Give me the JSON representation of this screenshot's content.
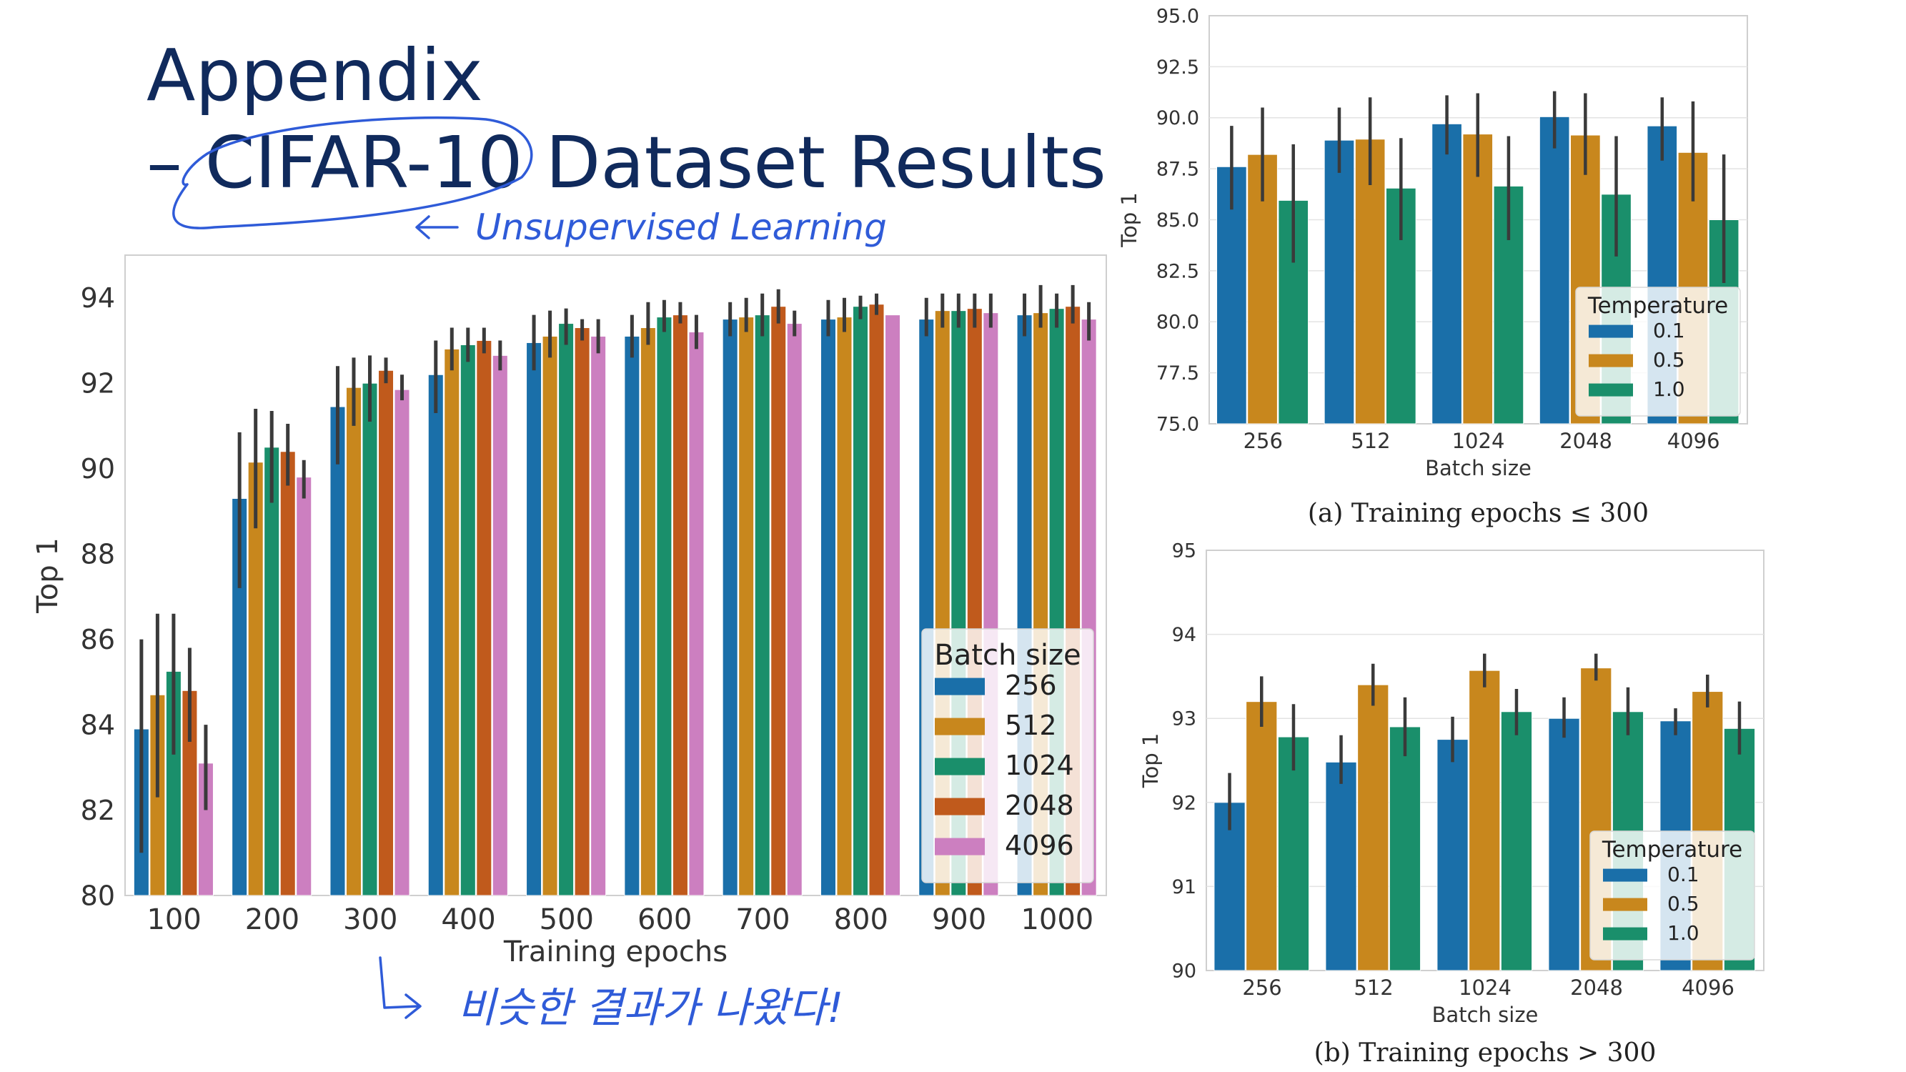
{
  "slide": {
    "title_line1": "Appendix",
    "title_line2": "– CIFAR-10 Dataset Results",
    "annotation_top": "Unsupervised Learning",
    "annotation_bottom": "비슷한 결과가 나왔다!"
  },
  "colors": {
    "256": "#1a6fa9",
    "512": "#c8871d",
    "1024": "#1a8f6b",
    "2048": "#c05a1c",
    "4096": "#cc7fc0",
    "0.1": "#1a6fa9",
    "0.5": "#c8871d",
    "1.0": "#1a8f6b"
  },
  "chart_data": [
    {
      "id": "main",
      "type": "bar",
      "xlabel": "Training epochs",
      "ylabel": "Top 1",
      "ylim": [
        80,
        95
      ],
      "yticks": [
        80,
        82,
        84,
        86,
        88,
        90,
        92,
        94
      ],
      "categories": [
        "100",
        "200",
        "300",
        "400",
        "500",
        "600",
        "700",
        "800",
        "900",
        "1000"
      ],
      "legend": {
        "title": "Batch size",
        "position": "lower-right"
      },
      "series": [
        {
          "name": "256",
          "values": [
            83.9,
            89.3,
            91.45,
            92.2,
            92.95,
            93.1,
            93.5,
            93.5,
            93.5,
            93.6
          ],
          "err": [
            [
              81.0,
              86.0
            ],
            [
              87.2,
              90.85
            ],
            [
              90.1,
              92.4
            ],
            [
              91.3,
              93.0
            ],
            [
              92.3,
              93.6
            ],
            [
              92.6,
              93.6
            ],
            [
              93.1,
              93.9
            ],
            [
              93.1,
              93.95
            ],
            [
              93.1,
              94.0
            ],
            [
              93.1,
              94.1
            ]
          ]
        },
        {
          "name": "512",
          "values": [
            84.7,
            90.15,
            91.9,
            92.8,
            93.1,
            93.3,
            93.55,
            93.55,
            93.7,
            93.65
          ],
          "err": [
            [
              82.3,
              86.6
            ],
            [
              88.6,
              91.4
            ],
            [
              91.0,
              92.6
            ],
            [
              92.3,
              93.3
            ],
            [
              92.6,
              93.7
            ],
            [
              92.9,
              93.9
            ],
            [
              93.2,
              94.0
            ],
            [
              93.2,
              94.0
            ],
            [
              93.3,
              94.1
            ],
            [
              93.3,
              94.3
            ]
          ]
        },
        {
          "name": "1024",
          "values": [
            85.25,
            90.5,
            92.0,
            92.9,
            93.4,
            93.55,
            93.6,
            93.8,
            93.7,
            93.75
          ],
          "err": [
            [
              83.3,
              86.6
            ],
            [
              89.2,
              91.35
            ],
            [
              91.1,
              92.65
            ],
            [
              92.5,
              93.3
            ],
            [
              92.9,
              93.75
            ],
            [
              93.2,
              93.95
            ],
            [
              93.1,
              94.1
            ],
            [
              93.5,
              94.05
            ],
            [
              93.3,
              94.1
            ],
            [
              93.3,
              94.1
            ]
          ]
        },
        {
          "name": "2048",
          "values": [
            84.8,
            90.4,
            92.3,
            93.0,
            93.3,
            93.6,
            93.8,
            93.85,
            93.75,
            93.8
          ],
          "err": [
            [
              83.6,
              85.8
            ],
            [
              89.6,
              91.05
            ],
            [
              92.0,
              92.6
            ],
            [
              92.7,
              93.3
            ],
            [
              93.0,
              93.5
            ],
            [
              93.4,
              93.9
            ],
            [
              93.4,
              94.2
            ],
            [
              93.6,
              94.1
            ],
            [
              93.3,
              94.1
            ],
            [
              93.4,
              94.3
            ]
          ]
        },
        {
          "name": "4096",
          "values": [
            83.1,
            89.8,
            91.85,
            92.65,
            93.1,
            93.2,
            93.4,
            93.6,
            93.65,
            93.5
          ],
          "err": [
            [
              82.0,
              84.0
            ],
            [
              89.3,
              90.2
            ],
            [
              91.6,
              92.2
            ],
            [
              92.3,
              93.0
            ],
            [
              92.7,
              93.5
            ],
            [
              92.8,
              93.6
            ],
            [
              93.1,
              93.7
            ],
            [
              93.6,
              93.6
            ],
            [
              93.3,
              94.1
            ],
            [
              93.0,
              93.9
            ]
          ]
        }
      ]
    },
    {
      "id": "a",
      "type": "bar",
      "caption": "(a) Training epochs ≤ 300",
      "xlabel": "Batch size",
      "ylabel": "Top 1",
      "ylim": [
        75,
        95
      ],
      "yticks": [
        75.0,
        77.5,
        80.0,
        82.5,
        85.0,
        87.5,
        90.0,
        92.5,
        95.0
      ],
      "categories": [
        "256",
        "512",
        "1024",
        "2048",
        "4096"
      ],
      "legend": {
        "title": "Temperature",
        "position": "lower-right"
      },
      "series": [
        {
          "name": "0.1",
          "values": [
            87.6,
            88.9,
            89.7,
            90.05,
            89.6
          ],
          "err": [
            [
              85.5,
              89.6
            ],
            [
              87.3,
              90.5
            ],
            [
              88.2,
              91.1
            ],
            [
              88.5,
              91.3
            ],
            [
              87.9,
              91.0
            ]
          ]
        },
        {
          "name": "0.5",
          "values": [
            88.2,
            88.95,
            89.2,
            89.15,
            88.3
          ],
          "err": [
            [
              85.9,
              90.5
            ],
            [
              86.7,
              91.0
            ],
            [
              87.1,
              91.2
            ],
            [
              87.2,
              91.2
            ],
            [
              85.9,
              90.8
            ]
          ]
        },
        {
          "name": "1.0",
          "values": [
            85.95,
            86.55,
            86.65,
            86.25,
            85.0
          ],
          "err": [
            [
              82.9,
              88.7
            ],
            [
              84.0,
              89.0
            ],
            [
              84.0,
              89.1
            ],
            [
              83.2,
              89.1
            ],
            [
              81.9,
              88.2
            ]
          ]
        }
      ]
    },
    {
      "id": "b",
      "type": "bar",
      "caption": "(b) Training epochs > 300",
      "xlabel": "Batch size",
      "ylabel": "Top 1",
      "ylim": [
        90,
        95
      ],
      "yticks": [
        90,
        91,
        92,
        93,
        94,
        95
      ],
      "categories": [
        "256",
        "512",
        "1024",
        "2048",
        "4096"
      ],
      "legend": {
        "title": "Temperature",
        "position": "lower-right"
      },
      "series": [
        {
          "name": "0.1",
          "values": [
            92.0,
            92.48,
            92.75,
            93.0,
            92.97
          ],
          "err": [
            [
              91.67,
              92.35
            ],
            [
              92.22,
              92.8
            ],
            [
              92.48,
              93.02
            ],
            [
              92.77,
              93.25
            ],
            [
              92.8,
              93.12
            ]
          ]
        },
        {
          "name": "0.5",
          "values": [
            93.2,
            93.4,
            93.57,
            93.6,
            93.32
          ],
          "err": [
            [
              92.9,
              93.5
            ],
            [
              93.15,
              93.65
            ],
            [
              93.37,
              93.77
            ],
            [
              93.45,
              93.77
            ],
            [
              93.13,
              93.52
            ]
          ]
        },
        {
          "name": "1.0",
          "values": [
            92.78,
            92.9,
            93.08,
            93.08,
            92.88
          ],
          "err": [
            [
              92.38,
              93.17
            ],
            [
              92.55,
              93.25
            ],
            [
              92.8,
              93.35
            ],
            [
              92.8,
              93.37
            ],
            [
              92.57,
              93.2
            ]
          ]
        }
      ]
    }
  ]
}
